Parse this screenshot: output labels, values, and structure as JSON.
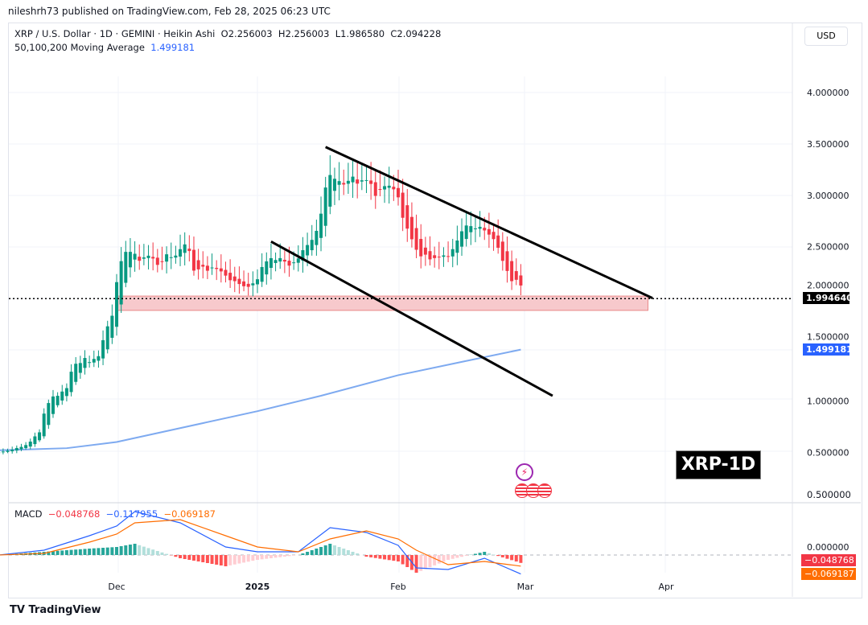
{
  "header": {
    "published": "nileshrh73 published on TradingView.com, Feb 28, 2025 06:23 UTC"
  },
  "legend": {
    "symbol": "XRP / U.S. Dollar · 1D · GEMINI · Heikin Ashi",
    "open": "O2.256003",
    "high": "H2.256003",
    "low": "L1.986580",
    "close": "C2.094228",
    "ma_label": "50,100,200 Moving Average",
    "ma_value": "1.499181"
  },
  "currency_button": "USD",
  "annotation": "XRP-1D",
  "price_badge": "1.994640",
  "ma_badge": "1.499181",
  "macd": {
    "label": "MACD",
    "hist": "−0.048768",
    "macd": "−0.117955",
    "signal": "−0.069187",
    "badge_hist": "−0.048768",
    "badge_signal": "−0.069187",
    "zero_tick": "0.000000",
    "top_tick": "0.500000"
  },
  "footer": {
    "logo": "TradingView"
  },
  "colors": {
    "up": "#089981",
    "down": "#f23645",
    "ma": "#7eaaf0",
    "macd": "#2962ff",
    "signal": "#ff6d00",
    "zone": "#f7c9cc"
  },
  "chart_data": {
    "type": "candlestick",
    "style": "Heikin Ashi",
    "x_start": "2024-11-05",
    "x_ticks": [
      "Dec",
      "2025",
      "Feb",
      "Mar",
      "Apr"
    ],
    "y_ticks": [
      "4.000000",
      "3.500000",
      "3.000000",
      "2.500000",
      "2.000000",
      "1.500000",
      "1.000000",
      "0.500000"
    ],
    "ylim": [
      0.4,
      4.2
    ],
    "closes": [
      0.5,
      0.51,
      0.52,
      0.53,
      0.55,
      0.56,
      0.58,
      0.62,
      0.68,
      0.72,
      0.95,
      1.05,
      1.1,
      1.08,
      1.12,
      1.15,
      1.35,
      1.42,
      1.4,
      1.45,
      1.38,
      1.42,
      1.45,
      1.65,
      1.8,
      1.9,
      2.3,
      2.5,
      2.55,
      2.5,
      2.45,
      2.35,
      2.4,
      2.42,
      2.38,
      2.3,
      2.35,
      2.45,
      2.4,
      2.42,
      2.5,
      2.55,
      2.45,
      2.2,
      2.25,
      2.3,
      2.25,
      2.3,
      2.28,
      2.25,
      2.2,
      2.15,
      2.15,
      2.12,
      2.1,
      2.1,
      2.15,
      2.2,
      2.35,
      2.4,
      2.42,
      2.38,
      2.4,
      2.35,
      2.3,
      2.35,
      2.4,
      2.5,
      2.55,
      2.6,
      2.7,
      2.9,
      3.2,
      3.3,
      3.2,
      3.15,
      3.1,
      3.15,
      3.2,
      3.1,
      3.15,
      3.15,
      3.1,
      2.95,
      3.05,
      3.1,
      3.1,
      3.05,
      2.95,
      2.7,
      2.6,
      2.5,
      2.4,
      2.35,
      2.4,
      2.35,
      2.38,
      2.4,
      2.42,
      2.4,
      2.5,
      2.6,
      2.7,
      2.75,
      2.72,
      2.68,
      2.7,
      2.65,
      2.6,
      2.55,
      2.45,
      2.3,
      2.2,
      2.1,
      2.15,
      2.09
    ],
    "ma200": [
      [
        "2024-11-05",
        0.52
      ],
      [
        "2024-11-20",
        0.54
      ],
      [
        "2024-12-01",
        0.6
      ],
      [
        "2025-01-01",
        0.9
      ],
      [
        "2025-01-15",
        1.05
      ],
      [
        "2025-02-01",
        1.25
      ],
      [
        "2025-02-15",
        1.38
      ],
      [
        "2025-02-28",
        1.499
      ]
    ],
    "current_price": 1.99464,
    "support_zone": {
      "from": "2024-12-01",
      "to": "2025-03-28",
      "low": 1.88,
      "high": 2.02
    },
    "trendlines": [
      {
        "from": [
          "2025-01-16",
          3.47
        ],
        "to": [
          "2025-03-29",
          2.0
        ]
      },
      {
        "from": [
          "2025-01-04",
          2.55
        ],
        "to": [
          "2025-03-07",
          1.05
        ]
      }
    ],
    "macd_series": {
      "dates": [
        "2024-11-05",
        "2024-11-15",
        "2024-11-25",
        "2024-12-01",
        "2024-12-05",
        "2024-12-15",
        "2024-12-25",
        "2025-01-01",
        "2025-01-10",
        "2025-01-17",
        "2025-01-25",
        "2025-02-01",
        "2025-02-05",
        "2025-02-12",
        "2025-02-20",
        "2025-02-28"
      ],
      "macd": [
        0.0,
        0.03,
        0.12,
        0.18,
        0.27,
        0.2,
        0.05,
        0.02,
        0.02,
        0.17,
        0.14,
        0.06,
        -0.08,
        -0.09,
        -0.02,
        -0.118
      ],
      "signal": [
        0.0,
        0.01,
        0.08,
        0.13,
        0.2,
        0.22,
        0.12,
        0.05,
        0.02,
        0.1,
        0.15,
        0.1,
        0.03,
        -0.06,
        -0.04,
        -0.069
      ]
    }
  }
}
